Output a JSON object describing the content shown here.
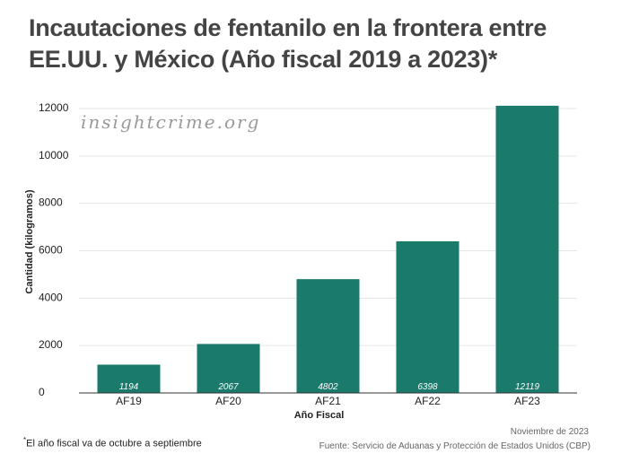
{
  "title": "Incautaciones de fentanilo en la frontera entre EE.UU. y México (Año fiscal 2019 a 2023)*",
  "watermark": "insightcrime.org",
  "footnote_mark": "*",
  "footnote_text": "El año fiscal va de octubre a septiembre",
  "date": "Noviembre de 2023",
  "source": "Fuente: Servicio de Aduanas y Protección de Estados Unidos (CBP)",
  "colors": {
    "bar": "#1a7a6b",
    "grid": "#e6e6e6",
    "axis": "#333333"
  },
  "chart_data": {
    "type": "bar",
    "title": "Incautaciones de fentanilo en la frontera entre EE.UU. y México (Año fiscal 2019 a 2023)*",
    "categories": [
      "AF19",
      "AF20",
      "AF21",
      "AF22",
      "AF23"
    ],
    "values": [
      1194,
      2067,
      4802,
      6398,
      12119
    ],
    "data_labels": [
      "1194",
      "2067",
      "4802",
      "6398",
      "12119"
    ],
    "xlabel": "Año Fiscal",
    "ylabel": "Cantidad (kilogramos)",
    "ylim": [
      0,
      12000
    ],
    "yticks": [
      0,
      2000,
      4000,
      6000,
      8000,
      10000,
      12000
    ],
    "ytick_labels": [
      "0",
      "2000",
      "4000",
      "6000",
      "8000",
      "10000",
      "12000"
    ],
    "grid": true,
    "legend": "none"
  }
}
